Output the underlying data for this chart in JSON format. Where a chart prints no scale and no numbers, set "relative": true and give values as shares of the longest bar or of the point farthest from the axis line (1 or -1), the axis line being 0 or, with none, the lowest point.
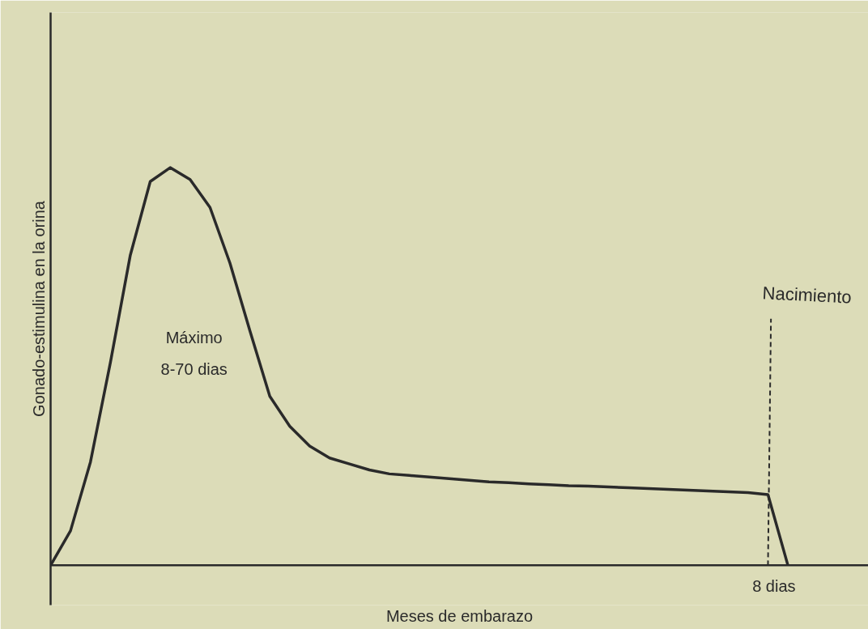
{
  "chart_data": {
    "type": "line",
    "relative": true,
    "xlabel": "Meses de embarazo",
    "ylabel": "Gonado-estimulina en la orina",
    "categories": [
      null,
      null,
      null,
      null,
      null,
      null,
      null,
      null,
      null,
      null,
      null,
      null,
      null,
      null,
      null,
      null,
      null,
      null,
      null,
      null,
      null,
      null,
      null,
      null,
      null,
      null,
      null,
      null,
      null,
      null,
      null,
      null,
      null,
      null,
      null,
      null,
      null,
      null
    ],
    "series": [
      {
        "color": "#2a2a2a",
        "values": [
          0,
          0.087,
          0.26,
          0.51,
          0.78,
          0.965,
          1,
          0.97,
          0.9,
          0.76,
          0.59,
          0.425,
          0.35,
          0.3,
          0.27,
          0.255,
          0.24,
          0.23,
          0.226,
          0.222,
          0.218,
          0.214,
          0.21,
          0.208,
          0.205,
          0.203,
          0.2,
          0.199,
          0.197,
          0.195,
          0.193,
          0.191,
          0.189,
          0.187,
          0.185,
          0.183,
          0.178,
          0
        ]
      }
    ],
    "ref_lines": [
      {
        "axis": "x",
        "label": "Nacimiento",
        "color": "#2a2a2a",
        "line_style": "dashed"
      }
    ],
    "annotations": [
      "Máximo",
      "8-70 dias",
      "8 dias"
    ]
  }
}
